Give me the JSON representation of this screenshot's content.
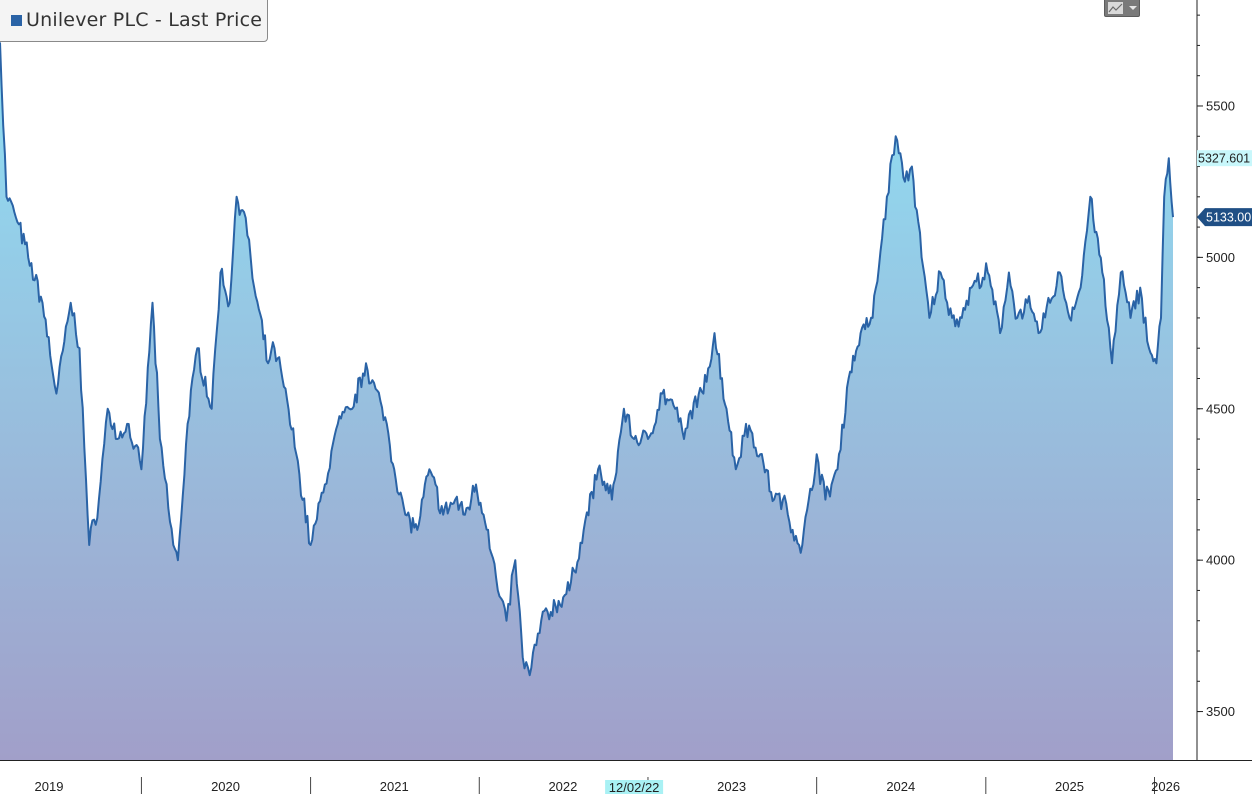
{
  "legend": {
    "label": "Unilever PLC - Last Price",
    "swatch_color": "#2a63a6"
  },
  "toolbar": {
    "chart_type_icon": "line-chart-icon",
    "dropdown_icon": "chevron-down-icon"
  },
  "cursor_date_label": "12/02/22",
  "last_price_label": "5327.601",
  "current_price_label": "5133.00",
  "chart_data": {
    "type": "area",
    "title": "",
    "xlabel": "",
    "ylabel": "",
    "ylim": [
      3340,
      5850
    ],
    "y_ticks": [
      3500,
      4000,
      4500,
      5000,
      5500
    ],
    "x_labels": [
      "2019",
      "2020",
      "2021",
      "2022",
      "2023",
      "2024",
      "2025",
      "2026"
    ],
    "x_range": [
      "2019-03-01",
      "2026-02-10"
    ],
    "line_color": "#2a63a6",
    "fill_gradient": [
      "#8fe0f4",
      "#a19fc9"
    ],
    "grid": false,
    "series": [
      {
        "name": "Unilever PLC - Last Price",
        "x": [
          "2019-03-01",
          "2019-03-15",
          "2019-04-01",
          "2019-05-01",
          "2019-06-01",
          "2019-07-01",
          "2019-08-01",
          "2019-08-20",
          "2019-09-10",
          "2019-10-01",
          "2019-10-20",
          "2019-11-10",
          "2019-12-01",
          "2020-01-01",
          "2020-01-25",
          "2020-02-10",
          "2020-03-10",
          "2020-03-20",
          "2020-04-10",
          "2020-05-01",
          "2020-06-01",
          "2020-06-20",
          "2020-07-10",
          "2020-07-25",
          "2020-08-10",
          "2020-09-01",
          "2020-10-01",
          "2020-10-15",
          "2020-11-01",
          "2020-12-01",
          "2021-01-01",
          "2021-02-01",
          "2021-03-01",
          "2021-04-01",
          "2021-05-01",
          "2021-06-15",
          "2021-07-01",
          "2021-07-25",
          "2021-08-20",
          "2021-09-15",
          "2021-10-15",
          "2021-11-10",
          "2021-12-01",
          "2021-12-25",
          "2022-01-20",
          "2022-02-10",
          "2022-03-01",
          "2022-03-20",
          "2022-04-05",
          "2022-04-20",
          "2022-05-15",
          "2022-06-15",
          "2022-07-15",
          "2022-08-15",
          "2022-09-15",
          "2022-10-15",
          "2022-11-10",
          "2022-12-02",
          "2023-01-01",
          "2023-02-01",
          "2023-03-01",
          "2023-03-20",
          "2023-04-10",
          "2023-05-01",
          "2023-05-25",
          "2023-06-20",
          "2023-07-10",
          "2023-08-01",
          "2023-09-01",
          "2023-10-01",
          "2023-10-20",
          "2023-11-10",
          "2023-12-01",
          "2024-01-01",
          "2024-01-20",
          "2024-02-15",
          "2024-03-10",
          "2024-04-05",
          "2024-05-01",
          "2024-06-01",
          "2024-06-20",
          "2024-07-10",
          "2024-07-25",
          "2024-08-15",
          "2024-09-01",
          "2024-09-25",
          "2024-10-20",
          "2024-11-10",
          "2024-12-01",
          "2025-01-05",
          "2025-02-01",
          "2025-02-20",
          "2025-03-10",
          "2025-04-01",
          "2025-04-25",
          "2025-05-20",
          "2025-06-10",
          "2025-07-01",
          "2025-07-25",
          "2025-08-15",
          "2025-09-10",
          "2025-10-01",
          "2025-10-20",
          "2025-11-10",
          "2025-12-01",
          "2025-12-20",
          "2026-01-05",
          "2026-01-15",
          "2026-01-22",
          "2026-02-01",
          "2026-02-10"
        ],
        "y": [
          5710,
          5200,
          5150,
          5000,
          4850,
          4550,
          4850,
          4700,
          4050,
          4200,
          4500,
          4400,
          4450,
          4300,
          4850,
          4400,
          4050,
          4000,
          4450,
          4700,
          4500,
          4950,
          4850,
          5200,
          5150,
          4900,
          4650,
          4700,
          4600,
          4350,
          4050,
          4250,
          4450,
          4500,
          4650,
          4450,
          4300,
          4150,
          4100,
          4300,
          4150,
          4200,
          4150,
          4250,
          4100,
          3900,
          3800,
          4000,
          3680,
          3620,
          3800,
          3850,
          3900,
          4100,
          4300,
          4200,
          4500,
          4400,
          4400,
          4550,
          4500,
          4400,
          4520,
          4550,
          4750,
          4500,
          4300,
          4450,
          4350,
          4200,
          4200,
          4100,
          4050,
          4350,
          4200,
          4300,
          4600,
          4750,
          4800,
          5200,
          5400,
          5250,
          5300,
          5000,
          4800,
          4950,
          4800,
          4800,
          4900,
          4950,
          4750,
          4950,
          4800,
          4850,
          4750,
          4850,
          4950,
          4800,
          4900,
          5200,
          4950,
          4650,
          4950,
          4800,
          4900,
          4700,
          4650,
          4800,
          5200,
          5327.601,
          5133
        ]
      }
    ]
  }
}
